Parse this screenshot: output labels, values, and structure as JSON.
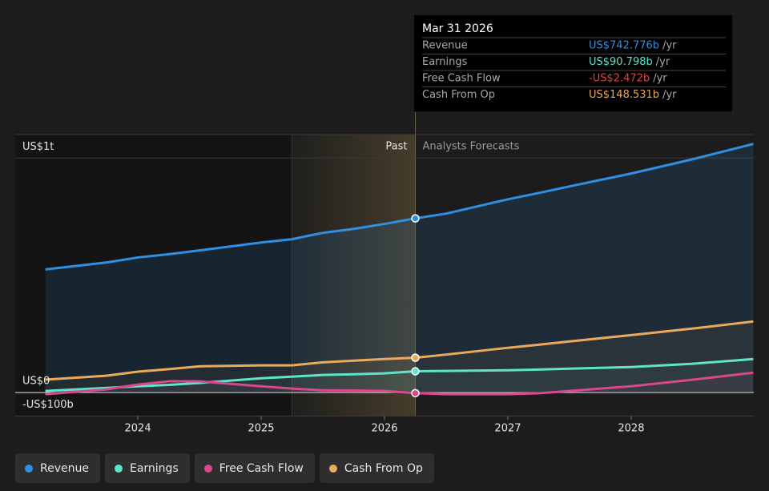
{
  "chart_data": {
    "type": "line",
    "x": [
      2023.25,
      2023.75,
      2024,
      2024.25,
      2024.5,
      2025,
      2025.25,
      2025.5,
      2025.75,
      2026,
      2026.25,
      2026.5,
      2027,
      2027.25,
      2027.5,
      2028,
      2028.5,
      2028.99
    ],
    "series": [
      {
        "name": "Revenue",
        "color": "#2e8fe3",
        "values": [
          525,
          555,
          576,
          590,
          606,
          640,
          654,
          681,
          698,
          719,
          742.776,
          763,
          824,
          851,
          879,
          934,
          995,
          1060
        ]
      },
      {
        "name": "Earnings",
        "color": "#5fe3c9",
        "values": [
          7,
          20,
          27,
          33,
          41,
          61,
          68,
          75,
          78,
          82,
          90.798,
          92,
          95,
          98,
          102,
          109,
          123,
          143
        ]
      },
      {
        "name": "Free Cash Flow",
        "color": "#d9478c",
        "values": [
          -7,
          14,
          34,
          48,
          48,
          27,
          17,
          10,
          9,
          7,
          -2.472,
          -7,
          -7,
          -3,
          7,
          27,
          55,
          85
        ]
      },
      {
        "name": "Cash From Op",
        "color": "#eaa95b",
        "values": [
          55,
          72,
          89,
          100,
          112,
          116,
          116,
          129,
          136,
          143,
          148.531,
          162,
          191,
          204,
          218,
          245,
          273,
          303
        ]
      }
    ],
    "xlim": [
      2023.006,
      2028.994
    ],
    "xticks": [
      2024,
      2025,
      2026,
      2027,
      2028
    ],
    "ylim": [
      -100,
      1100
    ],
    "yticks": [
      {
        "value": 1000,
        "label": "US$1t"
      },
      {
        "value": 0,
        "label": "US$0"
      },
      {
        "value": -100,
        "label": "-US$100b"
      }
    ],
    "past_start": 2025.25,
    "forecast_start": 2026.25,
    "past_label": "Past",
    "forecast_label": "Analysts Forecasts",
    "tooltip": {
      "title": "Mar 31 2026",
      "index": 10,
      "value_labels": [
        "US$742.776b",
        "US$90.798b",
        "-US$2.472b",
        "US$148.531b"
      ],
      "value_colors": [
        "#2e8fe3",
        "#5fe3c9",
        "#e8413c",
        "#eaa95b"
      ],
      "suffix": "/yr"
    }
  }
}
